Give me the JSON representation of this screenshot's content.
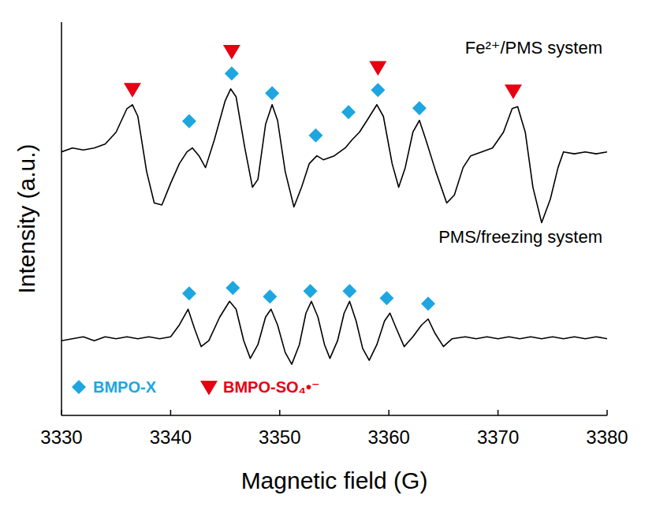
{
  "chart_data": {
    "type": "line",
    "x_label": "Magnetic field (G)",
    "y_label": "Intensity (a.u.)",
    "annotations": [
      "Fe²⁺/PMS system",
      "PMS/freezing system"
    ],
    "xlim": [
      3330,
      3380
    ],
    "xticks": [
      3330,
      3340,
      3350,
      3360,
      3370,
      3380
    ],
    "ylim": [
      0,
      100
    ],
    "tick_labels": "x",
    "legend": "lower left",
    "series": [
      {
        "type": "line",
        "color": "#000000",
        "x": [
          3330,
          3331,
          3332,
          3333,
          3334,
          3335,
          3336,
          3336.5,
          3337,
          3337.8,
          3338.5,
          3339.2,
          3340,
          3340.8,
          3341.5,
          3342,
          3342.6,
          3343.2,
          3344,
          3345,
          3345.5,
          3346,
          3346.8,
          3347.5,
          3348,
          3348.7,
          3349.3,
          3349.8,
          3350.5,
          3351.3,
          3352,
          3352.7,
          3353.4,
          3354,
          3355,
          3356,
          3356.6,
          3357.3,
          3358,
          3358.9,
          3359.5,
          3360.3,
          3360.9,
          3361.5,
          3362.2,
          3362.8,
          3363.4,
          3364.3,
          3365.3,
          3366,
          3366.8,
          3367.5,
          3368.5,
          3369.5,
          3370.5,
          3371.3,
          3371.8,
          3372.5,
          3373.2,
          3374,
          3374.8,
          3375.5,
          3376,
          3377,
          3378,
          3379,
          3380
        ],
        "values": [
          67,
          68,
          67.5,
          68,
          69,
          72,
          78,
          79,
          76,
          62,
          54,
          53.5,
          59,
          64,
          67,
          68,
          66,
          63,
          70,
          80,
          83,
          81,
          68,
          58,
          60,
          74,
          79,
          75,
          62,
          53,
          58,
          64,
          66,
          65,
          66,
          68,
          70,
          72,
          75,
          79,
          76,
          64,
          58,
          63,
          72,
          75,
          70,
          62,
          54,
          56,
          63,
          66,
          67,
          68,
          72,
          78,
          78.5,
          72,
          58,
          49,
          55,
          63,
          67,
          66.5,
          67,
          66.5,
          67
        ]
      },
      {
        "type": "line",
        "color": "#000000",
        "x": [
          3330,
          3331,
          3332,
          3333,
          3334,
          3335,
          3336,
          3337,
          3338,
          3339,
          3340,
          3340.8,
          3341.6,
          3342.2,
          3342.8,
          3343.5,
          3344.5,
          3345.4,
          3346,
          3346.7,
          3347.3,
          3348,
          3348.7,
          3349.2,
          3349.8,
          3350.5,
          3351.1,
          3351.8,
          3352.4,
          3352.9,
          3353.5,
          3354.1,
          3354.6,
          3355.3,
          3355.9,
          3356.4,
          3357,
          3357.6,
          3358.2,
          3358.9,
          3359.6,
          3360.1,
          3360.7,
          3361.4,
          3362.2,
          3363,
          3363.6,
          3364.2,
          3365,
          3365.8,
          3367,
          3368,
          3369,
          3370,
          3371,
          3372,
          3373,
          3374,
          3375,
          3376,
          3377,
          3378,
          3379,
          3380
        ],
        "values": [
          19,
          19.5,
          20,
          19,
          20,
          19.5,
          20,
          19.5,
          20,
          19.5,
          20,
          23,
          27,
          22,
          17.5,
          19,
          25,
          29,
          27,
          19,
          14.5,
          18,
          25,
          27,
          23,
          16,
          13,
          18,
          26,
          29,
          25,
          18,
          14.5,
          19,
          26,
          29,
          24,
          17,
          14,
          18,
          24,
          26,
          22,
          17.5,
          20,
          23,
          24.5,
          21,
          17.5,
          19.5,
          20,
          19.5,
          20,
          19.5,
          20,
          19.5,
          20,
          19.5,
          20,
          19.5,
          20,
          19.5,
          20,
          19.5
        ]
      },
      {
        "type": "scatter",
        "name": "BMPO-X",
        "color": "#1da6e0",
        "marker": "diamond",
        "x": [
          3341.7,
          3345.6,
          3349.3,
          3353.3,
          3356.3,
          3359.0,
          3362.8,
          3341.7,
          3345.7,
          3349.1,
          3352.8,
          3356.4,
          3359.8,
          3363.6
        ],
        "values": [
          74.8,
          86.9,
          81.9,
          71.2,
          77.1,
          82.7,
          78.1,
          31.0,
          32.4,
          30.2,
          31.6,
          31.6,
          29.8,
          28.4
        ]
      },
      {
        "type": "scatter",
        "name": "BMPO-SO₄•⁻",
        "color": "#e60012",
        "marker": "triangle",
        "x": [
          3336.5,
          3345.6,
          3359.0,
          3371.4
        ],
        "values": [
          82.9,
          92.6,
          88.5,
          82.5
        ]
      }
    ]
  }
}
